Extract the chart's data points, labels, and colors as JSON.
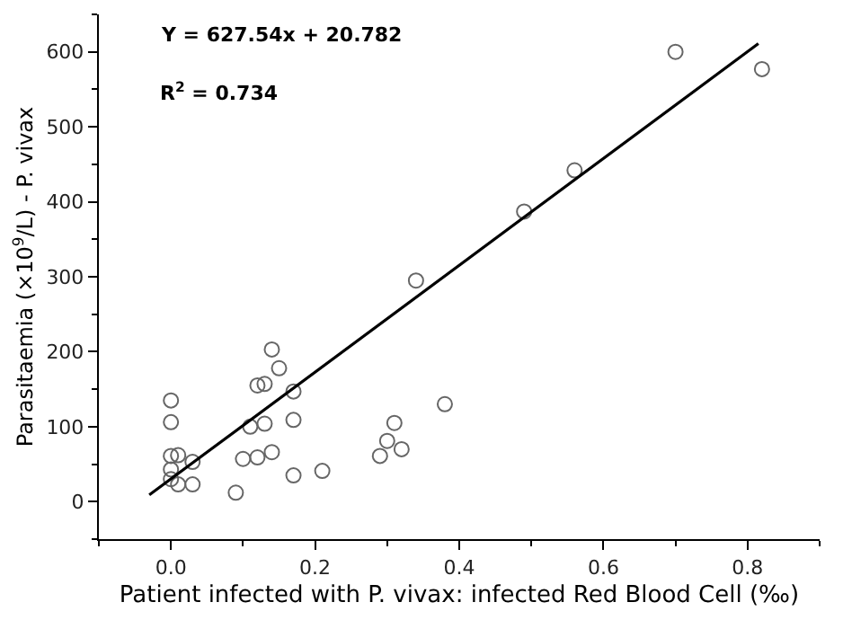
{
  "chart_data": {
    "type": "scatter",
    "xlabel": "Patient infected with P. vivax: infected Red Blood Cell (‰)",
    "ylabel": "Parasitaemia (×10$^{9}$/L) - P. vivax",
    "annotations": [
      "Y = 627.54x + 20.782",
      "R$^{2}$ = 0.734"
    ],
    "xlim": [
      -0.1,
      0.9
    ],
    "xticks": [
      {
        "value": 0,
        "label": "0.0"
      },
      {
        "value": 0.2,
        "label": "0.2"
      },
      {
        "value": 0.4,
        "label": "0.4"
      },
      {
        "value": 0.6,
        "label": "0.6"
      },
      {
        "value": 0.8,
        "label": "0.8"
      }
    ],
    "ylim": [
      -50,
      650
    ],
    "yticks": [
      0,
      100,
      200,
      300,
      400,
      500,
      600
    ],
    "series": [
      {
        "marker": "circle",
        "color": "#666666",
        "x": [
          0,
          0,
          0,
          0.01,
          0,
          0.03,
          0.01,
          0.03,
          0,
          0.09,
          0.1,
          0.11,
          0.12,
          0.12,
          0.13,
          0.13,
          0.14,
          0.14,
          0.15,
          0.17,
          0.17,
          0.17,
          0.21,
          0.29,
          0.3,
          0.31,
          0.32,
          0.34,
          0.38,
          0.49,
          0.56,
          0.7,
          0.82
        ],
        "values": [
          135,
          106,
          61,
          62,
          43,
          53,
          23,
          23,
          30,
          12,
          57,
          100,
          59,
          155,
          157,
          104,
          203,
          66,
          178,
          147,
          109,
          35,
          41,
          61,
          81,
          105,
          70,
          295,
          130,
          387,
          442,
          600,
          577
        ]
      },
      {
        "type": "line",
        "color": "#000000",
        "x": [
          -0.03,
          0.815
        ],
        "values": [
          9,
          611
        ]
      }
    ]
  }
}
